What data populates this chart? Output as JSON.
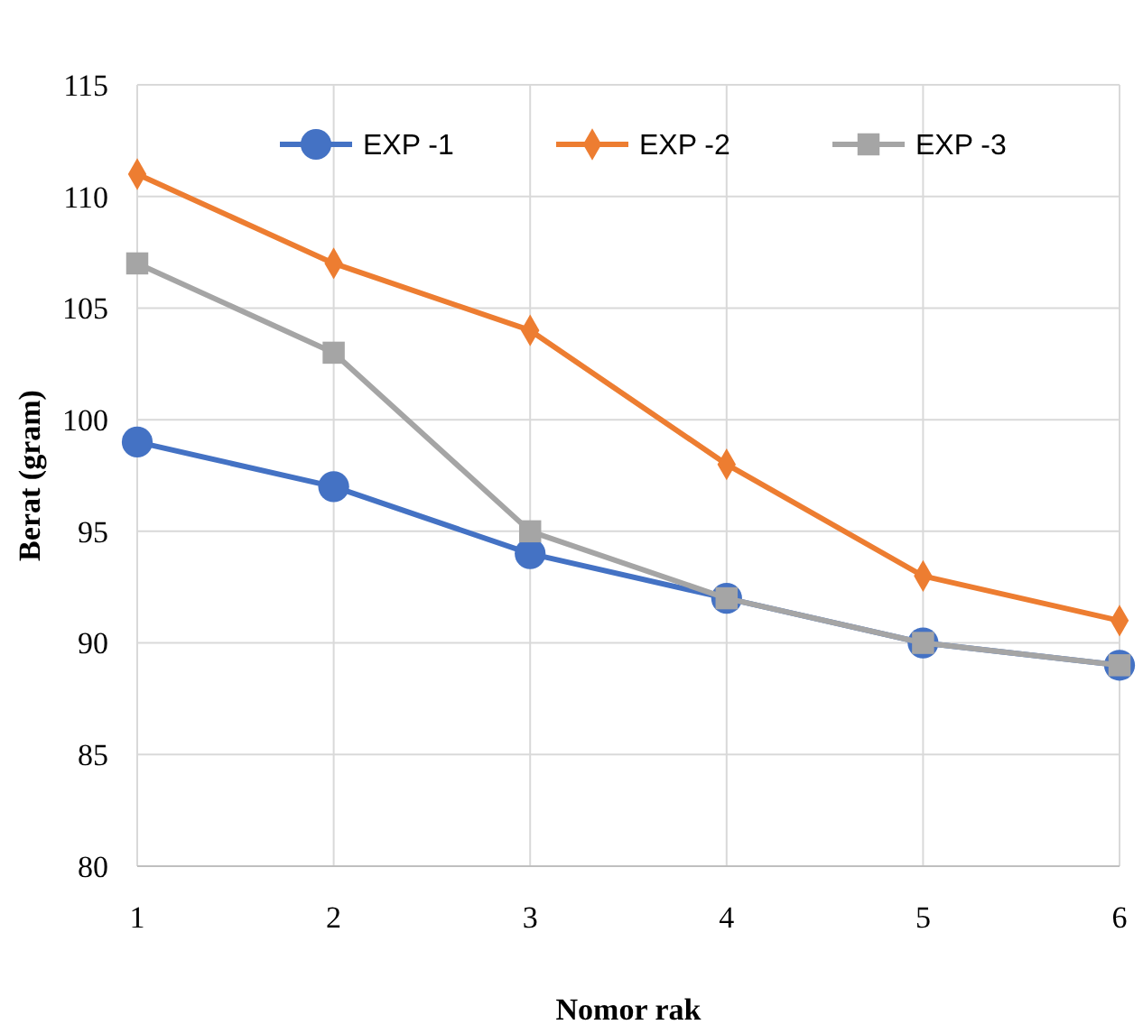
{
  "chart_data": {
    "type": "line",
    "xlabel": "Nomor rak",
    "ylabel": "Berat (gram)",
    "categories": [
      "1",
      "2",
      "3",
      "4",
      "5",
      "6"
    ],
    "ylim": [
      80,
      115
    ],
    "yticks": [
      80,
      85,
      90,
      95,
      100,
      105,
      110,
      115
    ],
    "grid": true,
    "legend": "top",
    "line_style": "solid",
    "series": [
      {
        "name": "EXP -1",
        "color": "#4472c4",
        "marker": "circle",
        "values": [
          99,
          97,
          94,
          92,
          90,
          89
        ]
      },
      {
        "name": "EXP -2",
        "color": "#ed7d31",
        "marker": "diamond",
        "values": [
          111,
          107,
          104,
          98,
          93,
          91
        ]
      },
      {
        "name": "EXP -3",
        "color": "#a5a5a5",
        "marker": "square",
        "values": [
          107,
          103,
          95,
          92,
          90,
          89
        ]
      }
    ]
  }
}
